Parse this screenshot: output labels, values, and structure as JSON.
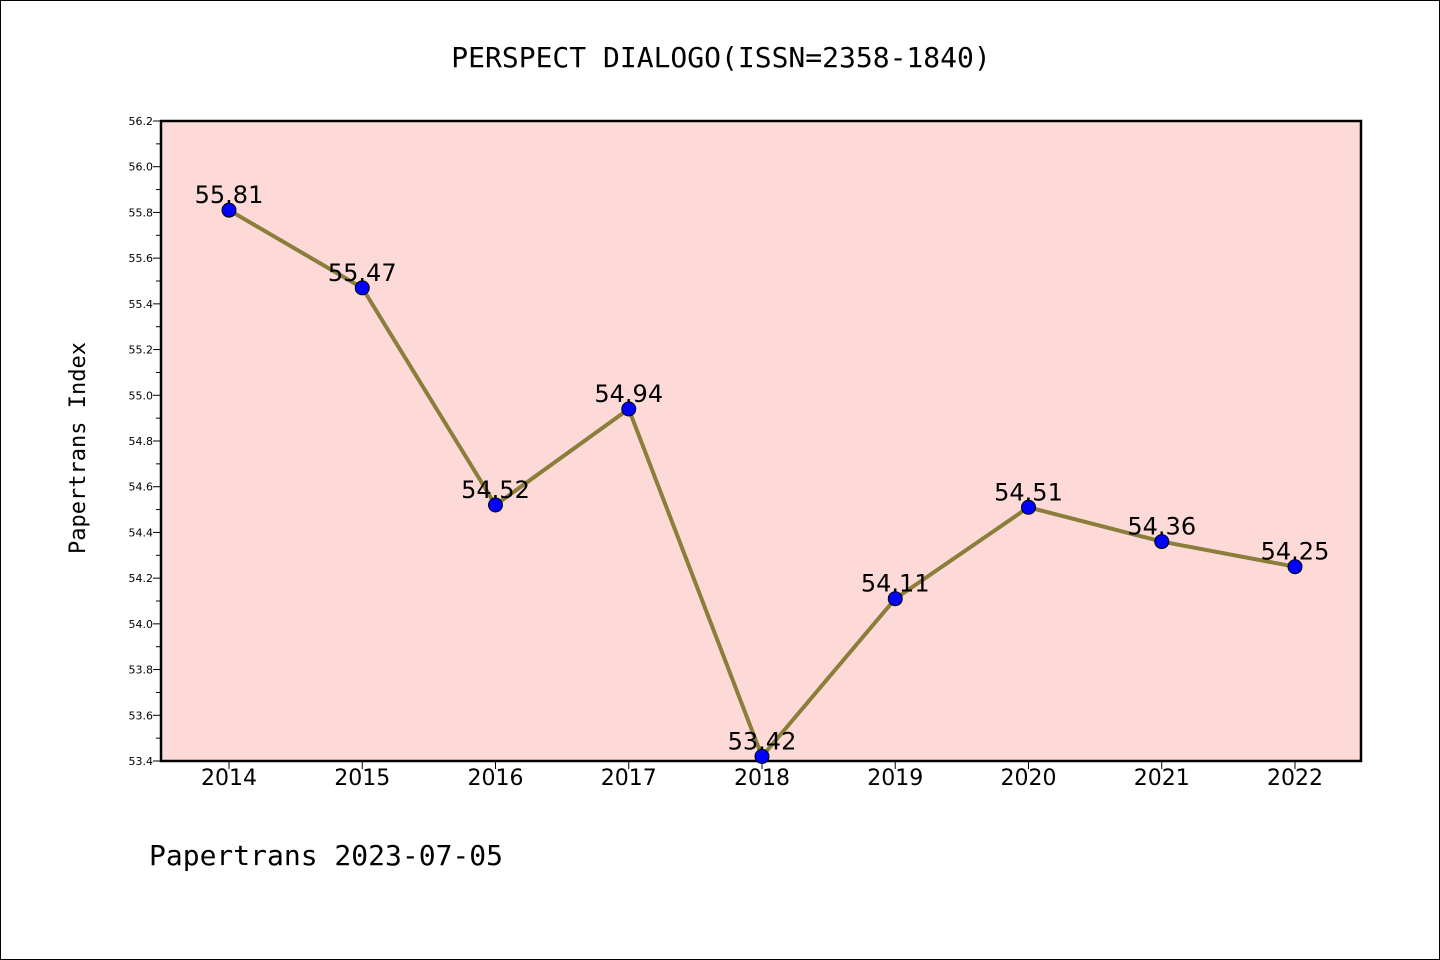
{
  "chart_data": {
    "type": "line",
    "title": "PERSPECT DIALOGO(ISSN=2358-1840)",
    "xlabel": "",
    "ylabel": "Papertrans Index",
    "footer": "Papertrans 2023-07-05",
    "categories": [
      "2014",
      "2015",
      "2016",
      "2017",
      "2018",
      "2019",
      "2020",
      "2021",
      "2022"
    ],
    "series": [
      {
        "values": [
          55.81,
          55.47,
          54.52,
          54.94,
          53.42,
          54.11,
          54.51,
          54.36,
          54.25
        ],
        "labels": [
          "55.81",
          "55.47",
          "54.52",
          "54.94",
          "53.42",
          "54.11",
          "54.51",
          "54.36",
          "54.25"
        ]
      }
    ],
    "ylim": [
      53.4,
      56.2
    ],
    "yticks": [
      "53.4",
      "53.6",
      "53.8",
      "54.0",
      "54.2",
      "54.4",
      "54.6",
      "54.8",
      "55.0",
      "55.2",
      "55.4",
      "55.6",
      "55.8",
      "56.0",
      "56.2"
    ],
    "grid": false,
    "colors": {
      "plot_background": "#FDDAD8",
      "line": "#8B7D3A",
      "marker": "#0000FF",
      "marker_edge": "#000000"
    }
  }
}
